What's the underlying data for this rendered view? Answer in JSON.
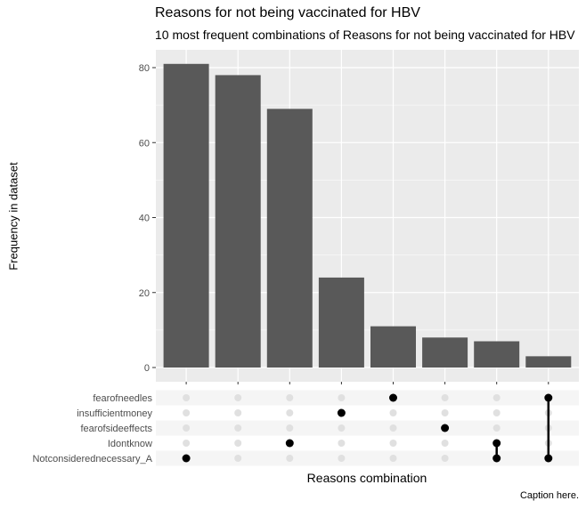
{
  "chart_data": {
    "type": "bar",
    "title": "Reasons for not being vaccinated for HBV",
    "subtitle": "10 most frequent combinations of Reasons for not being vaccinated for HBV",
    "xlabel": "Reasons combination",
    "ylabel": "Frequency in dataset",
    "caption": "Caption here.",
    "ylim": [
      0,
      85
    ],
    "yticks": [
      0,
      20,
      40,
      60,
      80
    ],
    "values": [
      81,
      78,
      69,
      24,
      11,
      8,
      7,
      3
    ],
    "sets": [
      "fearofneedles",
      "insufficientmoney",
      "fearofsideeffects",
      "Idontknow",
      "Notconsiderednecessary_A"
    ],
    "combinations": [
      [
        "Notconsiderednecessary_A"
      ],
      [],
      [
        "Idontknow"
      ],
      [
        "insufficientmoney"
      ],
      [
        "fearofneedles"
      ],
      [
        "fearofsideeffects"
      ],
      [
        "Idontknow",
        "Notconsiderednecessary_A"
      ],
      [
        "fearofneedles",
        "Notconsiderednecessary_A"
      ]
    ],
    "grid": true,
    "colors": {
      "bar": "#595959",
      "panel": "#ebebeb",
      "gridline": "#ffffff",
      "matrix_band": "#f5f5f5",
      "dot_active": "#000000",
      "dot_inactive": "#e0e0e0"
    }
  }
}
